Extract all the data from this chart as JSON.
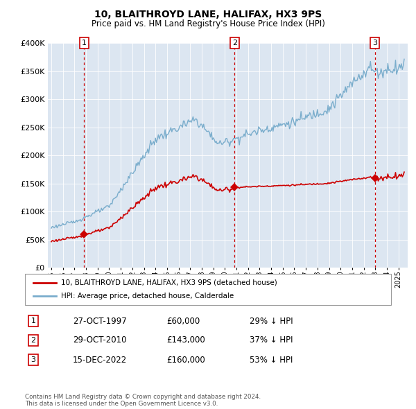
{
  "title": "10, BLAITHROYD LANE, HALIFAX, HX3 9PS",
  "subtitle": "Price paid vs. HM Land Registry's House Price Index (HPI)",
  "ylim": [
    0,
    400000
  ],
  "yticks": [
    0,
    50000,
    100000,
    150000,
    200000,
    250000,
    300000,
    350000,
    400000
  ],
  "plot_bg_color": "#dce6f1",
  "sale_prices": [
    60000,
    143000,
    160000
  ],
  "sale_labels": [
    "1",
    "2",
    "3"
  ],
  "sale_pcts": [
    "29% ↓ HPI",
    "37% ↓ HPI",
    "53% ↓ HPI"
  ],
  "sale_date_strs": [
    "27-OCT-1997",
    "29-OCT-2010",
    "15-DEC-2022"
  ],
  "legend_label_red": "10, BLAITHROYD LANE, HALIFAX, HX3 9PS (detached house)",
  "legend_label_blue": "HPI: Average price, detached house, Calderdale",
  "footer": "Contains HM Land Registry data © Crown copyright and database right 2024.\nThis data is licensed under the Open Government Licence v3.0.",
  "red_color": "#cc0000",
  "blue_color": "#7aadcc",
  "vline_color": "#cc0000",
  "xmin": 1994.7,
  "xmax": 2025.8,
  "xtick_start": 1995,
  "xtick_end": 2025
}
